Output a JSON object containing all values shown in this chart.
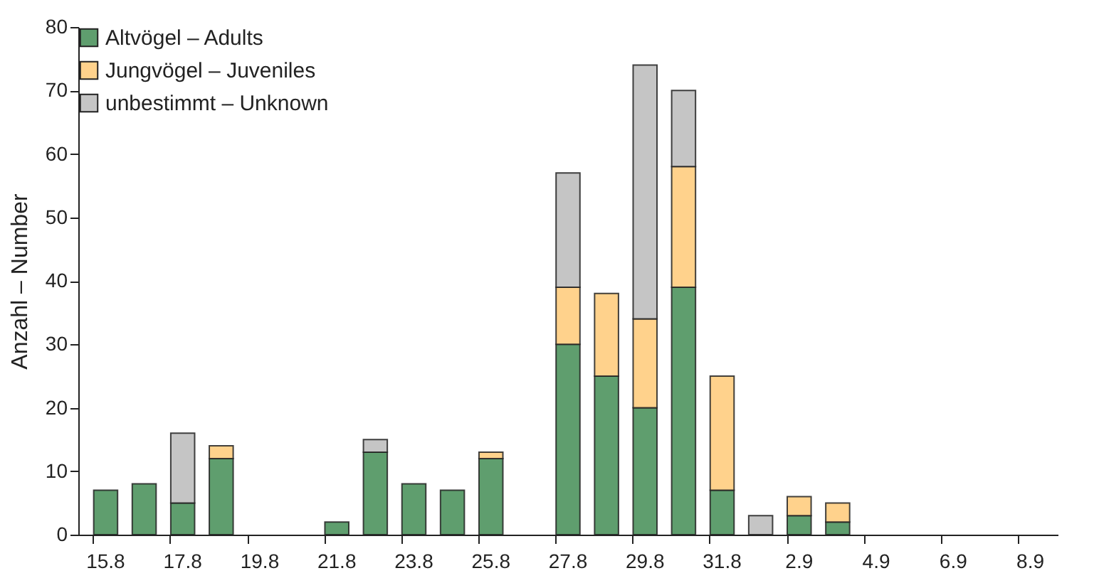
{
  "chart_data": {
    "type": "bar",
    "stacked": true,
    "ylabel": "Anzahl – Number",
    "categories": [
      "15.8",
      null,
      "17.8",
      null,
      "19.8",
      null,
      "21.8",
      null,
      "23.8",
      null,
      "25.8",
      null,
      "27.8",
      null,
      "29.8",
      null,
      "31.8",
      null,
      "2.9",
      null,
      "4.9",
      null,
      "6.9",
      null,
      "8.9"
    ],
    "series": [
      {
        "name": "Altvögel – Adults",
        "color": "#5f9e6e",
        "values": [
          7,
          8,
          5,
          12,
          null,
          null,
          2,
          13,
          8,
          7,
          12,
          null,
          30,
          25,
          20,
          39,
          7,
          null,
          3,
          2,
          null,
          null,
          null,
          null,
          null
        ]
      },
      {
        "name": "Jungvögel – Juveniles",
        "color": "#ffd28c",
        "values": [
          null,
          null,
          null,
          2,
          null,
          null,
          null,
          null,
          null,
          null,
          1,
          null,
          9,
          13,
          14,
          19,
          18,
          null,
          3,
          3,
          null,
          null,
          null,
          null,
          null
        ]
      },
      {
        "name": "unbestimmt – Unknown",
        "color": "#c5c5c5",
        "values": [
          null,
          null,
          11,
          null,
          null,
          null,
          null,
          2,
          null,
          null,
          null,
          null,
          18,
          null,
          40,
          12,
          null,
          3,
          null,
          null,
          null,
          null,
          null,
          null,
          null
        ]
      }
    ],
    "ylim": [
      0,
      80
    ],
    "yticks": [
      0,
      10,
      20,
      30,
      40,
      50,
      60,
      70,
      80
    ],
    "grid": false,
    "legend": "top left"
  }
}
